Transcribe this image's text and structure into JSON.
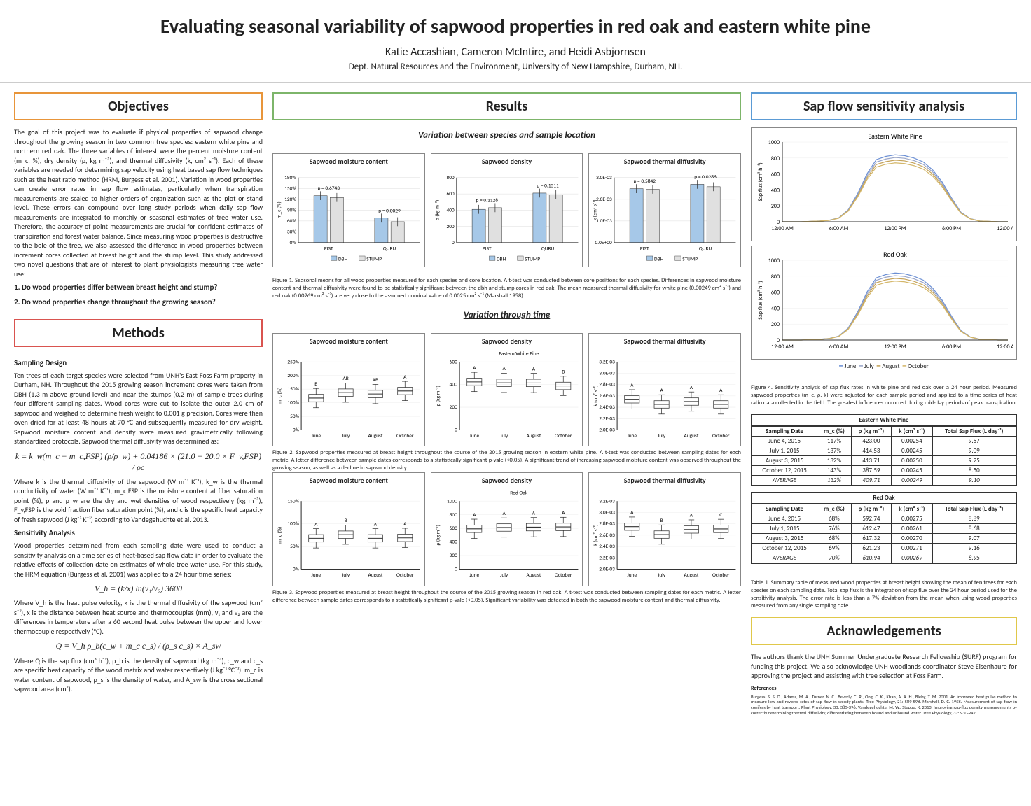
{
  "header": {
    "title": "Evaluating seasonal variability of sapwood properties in red oak and eastern white pine",
    "authors": "Katie Accashian, Cameron McIntire, and Heidi Asbjornsen",
    "dept": "Dept. Natural Resources and the Environment, University of New Hampshire, Durham, NH."
  },
  "objectives": {
    "heading": "Objectives",
    "text": "The goal of this project was to evaluate if physical properties of sapwood change throughout the growing season in two common tree species: eastern white pine and northern red oak. The three variables of interest were the percent moisture content (m_c, %), dry density (ρ, kg m⁻³), and thermal diffusivity (k, cm² s⁻¹). Each of these variables are needed for determining sap velocity using heat based sap flow techniques such as the heat ratio method (HRM, Burgess et al. 2001). Variation in wood properties can create error rates in sap flow estimates, particularly when transpiration measurements are scaled to higher orders of organization such as the plot or stand level. These errors can compound over long study periods when daily sap flow measurements are integrated to monthly or seasonal estimates of tree water use. Therefore, the accuracy of point measurements are crucial for confident estimates of transpiration and forest water balance. Since measuring wood properties is destructive to the bole of the tree, we also assessed the difference in wood properties between increment cores collected at breast height and the stump level. This study addressed two novel questions that are of interest to plant physiologists measuring tree water use:",
    "q1": "1.  Do wood properties differ between breast height and stump?",
    "q2": "2.  Do wood properties change throughout the growing season?"
  },
  "methods": {
    "heading": "Methods",
    "sampling_head": "Sampling Design",
    "sampling_text": "Ten trees of each target species were selected from UNH's East Foss Farm property in Durham, NH. Throughout the 2015 growing season increment cores were taken from DBH (1.3 m above ground level) and near the stumps (0.2 m) of sample trees during four different sampling dates. Wood cores were cut to isolate the outer 2.0 cm of sapwood and weighed to determine fresh weight to 0.001 g precision. Cores were then oven dried for at least 48 hours at 70 °C and subsequently measured for dry weight. Sapwood moisture content and density were measured gravimetrically following standardized protocols. Sapwood thermal diffusivity was determined as:",
    "formula1": "k = k_w(m_c − m_c,FSP) (ρ/ρ_w) + 0.04186 × (21.0 − 20.0 × F_v,FSP) / ρc",
    "sampling_text2": "Where k is the thermal diffusivity of the sapwood (W m⁻¹ K⁻¹), k_w is the thermal conductivity of water (W m⁻¹ K⁻¹), m_c,FSP is the moisture content at fiber saturation point (%), ρ and ρ_w are the dry and wet densities of wood respectively (kg m⁻³), F_v,FSP is the void fraction fiber saturation point (%), and c is the specific heat capacity of fresh sapwood (J kg⁻¹ K⁻¹) according to Vandegehuchte et al. 2013.",
    "sens_head": "Sensitivity Analysis",
    "sens_text": "Wood properties determined from each sampling date were used to conduct a sensitivity analysis on a time series of heat-based sap flow data in order to evaluate the relative effects of collection date on estimates of whole tree water use. For this study, the HRM equation (Burgess et al. 2001) was applied to a 24 hour time series:",
    "formula2": "V_h = (k/x) ln(v₁/v₂) 3600",
    "sens_text2": "Where V_h is the heat pulse velocity, k is the thermal diffusivity of the sapwood (cm² s⁻¹), x is the distance between heat source and thermocouples (mm), v₁ and v₂ are the differences in temperature after a 60 second heat pulse between the upper and lower thermocouple respectively (°C).",
    "formula3": "Q = V_h ρ_b(c_w + m_c c_s) / (ρ_s c_s) × A_sw",
    "sens_text3": "Where Q is the sap flux (cm³ h⁻¹), ρ_b is the density of sapwood (kg m⁻³), c_w and c_s are specific heat capacity of the wood matrix and water respectively (J kg⁻¹ °C⁻¹), m_c is water content of sapwood, ρ_s is the density of water, and A_sw is the cross sectional sapwood area (cm²)."
  },
  "results": {
    "heading": "Results",
    "sec1_title": "Variation between species and sample location",
    "fig1_cap": "Figure 1. Seasonal means for all wood properties measured for each species and core location. A t-test was conducted between core positions for each species. Differences in sapwood moisture content and thermal diffusivity were found to be statistically significant between the dbh and stump cores in red oak. The mean measured thermal diffusivity for white pine (0.00249 cm² s⁻¹) and red oak (0.00269 cm² s⁻¹) are very close to the assumed nominal value of 0.0025 cm² s⁻¹ (Marshall 1958).",
    "sec2_title": "Variation through time",
    "fig2_cap": "Figure 2. Sapwood properties measured at breast height throughout the course of the 2015 growing season in eastern white pine. A t-test was conducted between sampling dates for each metric. A letter difference between sample dates corresponds to a statistically significant p-vale (<0.05). A significant trend of increasing sapwood moisture content was observed throughout the growing season, as well as a decline in sapwood density.",
    "fig3_cap": "Figure 3. Sapwood properties measured at breast height throughout the course of the 2015 growing season in red oak. A t-test was conducted between sampling dates for each metric. A letter difference between sample dates corresponds to a statistically significant p-vale (<0.05). Significant variability was detected in both the sapwood moisture content and thermal diffusivity.",
    "bar_charts": [
      {
        "title": "Sapwood moisture content",
        "ylabel": "m_c (%)",
        "ymax": 180,
        "ticks": [
          "0%",
          "30%",
          "60%",
          "90%",
          "120%",
          "150%",
          "180%"
        ],
        "groups": [
          "PIST",
          "QURU"
        ],
        "dbh": [
          130,
          68
        ],
        "stump": [
          125,
          58
        ],
        "p": [
          "p = 0.6743",
          "p = 0.0029"
        ],
        "colors": {
          "dbh": "#a6c8e8",
          "stump": "#e0e0e0"
        }
      },
      {
        "title": "Sapwood density",
        "ylabel": "ρ (kg m⁻³)",
        "ymax": 800,
        "ticks": [
          "0",
          "200",
          "400",
          "600",
          "800"
        ],
        "groups": [
          "PIST",
          "QURU"
        ],
        "dbh": [
          410,
          610
        ],
        "stump": [
          430,
          590
        ],
        "p": [
          "p = 0.1128",
          "p = 0.1511"
        ],
        "colors": {
          "dbh": "#a6c8e8",
          "stump": "#e0e0e0"
        }
      },
      {
        "title": "Sapwood thermal diffusivity",
        "ylabel": "k (cm² s⁻¹)",
        "ymax": 0.003,
        "ticks": [
          "0.0E+00",
          "1.0E-03",
          "2.0E-03",
          "3.0E-03"
        ],
        "groups": [
          "PIST",
          "QURU"
        ],
        "dbh": [
          0.00249,
          0.00269
        ],
        "stump": [
          0.00246,
          0.00258
        ],
        "p": [
          "p = 0.5842",
          "p = 0.0286"
        ],
        "colors": {
          "dbh": "#a6c8e8",
          "stump": "#e0e0e0"
        }
      }
    ],
    "box_rows": [
      {
        "species": "Eastern White Pine",
        "charts": [
          {
            "title": "Sapwood moisture content",
            "ylabel": "m_c (%)",
            "ymax": 250,
            "ticks": [
              "0%",
              "50%",
              "100%",
              "150%",
              "200%",
              "250%"
            ],
            "labels": [
              "B",
              "AB",
              "AB",
              "A"
            ],
            "vals": [
              117,
              137,
              132,
              143
            ]
          },
          {
            "title": "Sapwood density",
            "ylabel": "ρ (kg m⁻³)",
            "ymax": 600,
            "ticks": [
              "0",
              "200",
              "400",
              "600"
            ],
            "labels": [
              "A",
              "A",
              "A",
              "B"
            ],
            "vals": [
              423,
              415,
              414,
              388
            ]
          },
          {
            "title": "Sapwood thermal diffusivity",
            "ylabel": "k (cm² s⁻¹)",
            "ymax": 0.0032,
            "ticks": [
              "2.0E-03",
              "2.2E-03",
              "2.4E-03",
              "2.6E-03",
              "2.8E-03",
              "3.0E-03",
              "3.2E-03"
            ],
            "labels": [
              "A",
              "A",
              "A",
              "A"
            ],
            "vals": [
              0.00254,
              0.00245,
              0.0025,
              0.00245
            ]
          }
        ]
      },
      {
        "species": "Red Oak",
        "charts": [
          {
            "title": "Sapwood moisture content",
            "ylabel": "m_c (%)",
            "ymax": 150,
            "ticks": [
              "0%",
              "50%",
              "100%",
              "150%"
            ],
            "labels": [
              "A",
              "B",
              "A",
              "A"
            ],
            "vals": [
              68,
              76,
              68,
              69
            ]
          },
          {
            "title": "Sapwood density",
            "ylabel": "ρ (kg m⁻³)",
            "ymax": 1000,
            "ticks": [
              "0",
              "200",
              "400",
              "600",
              "800",
              "1000"
            ],
            "labels": [
              "A",
              "A",
              "A",
              "A"
            ],
            "vals": [
              593,
              612,
              617,
              621
            ]
          },
          {
            "title": "Sapwood thermal diffusivity",
            "ylabel": "k (cm² s⁻¹)",
            "ymax": 0.0032,
            "ticks": [
              "2.0E-03",
              "2.2E-03",
              "2.4E-03",
              "2.6E-03",
              "2.8E-03",
              "3.0E-03",
              "3.2E-03"
            ],
            "labels": [
              "A",
              "B",
              "A",
              "C"
            ],
            "vals": [
              0.00275,
              0.00261,
              0.0027,
              0.00271
            ]
          }
        ]
      }
    ],
    "months": [
      "June",
      "July",
      "August",
      "October"
    ]
  },
  "sens": {
    "heading": "Sap flow sensitivity analysis",
    "line_charts": [
      {
        "title": "Eastern White Pine",
        "ymax": 1000,
        "ylabel": "Sap flux (cm³ h⁻¹)",
        "xlabels": [
          "12:00 AM",
          "6:00 AM",
          "12:00 PM",
          "6:00 PM",
          "12:00 AM"
        ],
        "series_colors": [
          "#6b8fd4",
          "#9aa6c9",
          "#c4a258",
          "#d4b76a"
        ]
      },
      {
        "title": "Red Oak",
        "ymax": 1000,
        "ylabel": "Sap flux (cm³ h⁻¹)",
        "xlabels": [
          "12:00 AM",
          "6:00 AM",
          "12:00 PM",
          "6:00 PM",
          "12:00 AM"
        ],
        "series_colors": [
          "#6b8fd4",
          "#9aa6c9",
          "#c4a258",
          "#d4b76a"
        ]
      }
    ],
    "legend": [
      "June",
      "July",
      "August",
      "October"
    ],
    "fig4_cap": "Figure 4. Sensitivity analysis of sap flux rates in white pine and red oak over a 24 hour period. Measured sapwood properties (m_c, ρ, k) were adjusted for each sample period and applied to a time series of heat ratio data collected in the field. The greatest influences occurred during mid-day periods of peak transpiration.",
    "table_pine": {
      "cap": "Eastern White Pine",
      "cols": [
        "Sampling Date",
        "m_c (%)",
        "ρ (kg m⁻³)",
        "k (cm² s⁻¹)",
        "Total Sap Flux (L day⁻¹)"
      ],
      "rows": [
        [
          "June 4, 2015",
          "117%",
          "423.00",
          "0.00254",
          "9.57"
        ],
        [
          "July 1, 2015",
          "137%",
          "414.53",
          "0.00245",
          "9.09"
        ],
        [
          "August 3, 2015",
          "132%",
          "413.71",
          "0.00250",
          "9.25"
        ],
        [
          "October 12, 2015",
          "143%",
          "387.59",
          "0.00245",
          "8.50"
        ],
        [
          "AVERAGE",
          "132%",
          "409.71",
          "0.00249",
          "9.10"
        ]
      ]
    },
    "table_oak": {
      "cap": "Red Oak",
      "cols": [
        "Sampling Date",
        "m_c (%)",
        "ρ (kg m⁻³)",
        "k (cm² s⁻¹)",
        "Total Sap Flux (L day⁻¹)"
      ],
      "rows": [
        [
          "June 4, 2015",
          "68%",
          "592.74",
          "0.00275",
          "8.89"
        ],
        [
          "July 1, 2015",
          "76%",
          "612.47",
          "0.00261",
          "8.68"
        ],
        [
          "August 3, 2015",
          "68%",
          "617.32",
          "0.00270",
          "9.07"
        ],
        [
          "October 12, 2015",
          "69%",
          "621.23",
          "0.00271",
          "9.16"
        ],
        [
          "AVERAGE",
          "70%",
          "610.94",
          "0.00269",
          "8.95"
        ]
      ]
    },
    "table1_cap": "Table 1. Summary table of measured wood properties at breast height showing the mean of ten trees for each species on each sampling date. Total sap flux is the integration of sap flux over the 24 hour period used for the sensitivity analysis. The error rate is less than a 7% deviation from the mean when using wood properties measured from any single sampling date."
  },
  "ack": {
    "heading": "Acknowledgements",
    "text": "The authors thank the UNH Summer Undergraduate Research Fellowship (SURF) program for funding this project. We also acknowledge UNH woodlands coordinator Steve Eisenhaure for approving the project and assisting with tree selection at Foss Farm.",
    "refs_head": "References",
    "refs": "Burgess, S. S. O., Adams, M. A., Turner, N. C., Beverly, C. R., Ong, C. K., Khan, A. A. H., Bleby, T. M. 2001. An improved heat pulse method to measure low and reverse rates of sap flow in woody plants. Tree Physiology, 21: 589-598.\nMarshall, D. C. 1958. Measurement of sap flow in conifers by heat transport. Plant Physiology, 33: 385-396.\nVandegehuchte, M. W., Steppe, K. 2013. Improving sap-flux density measurements by correctly determining thermal diffusivity, differentiating between bound and unbound water. Tree Physiology, 32: 930-942."
  }
}
